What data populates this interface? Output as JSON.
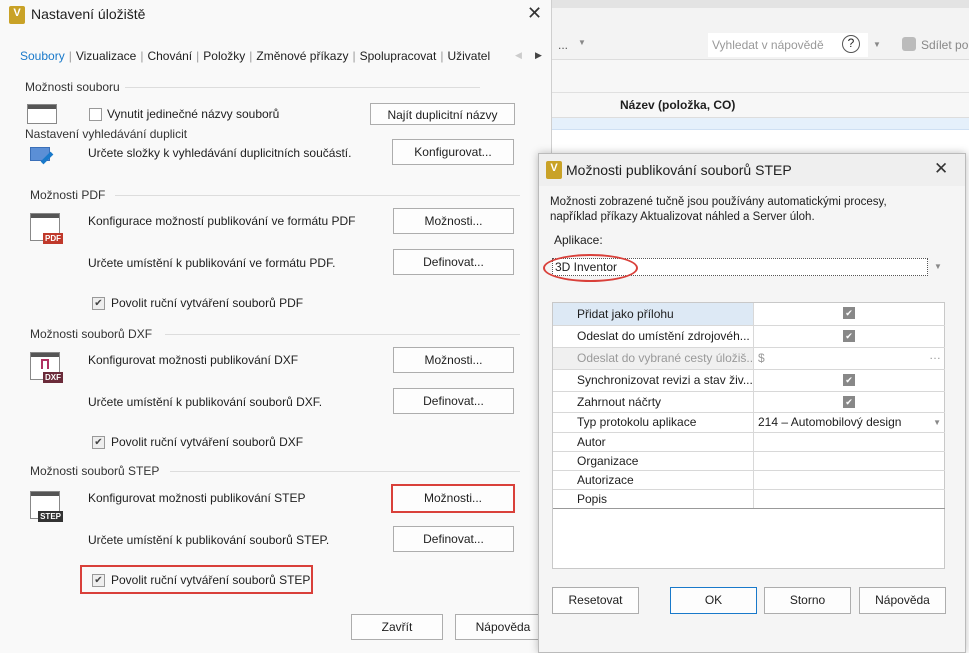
{
  "background": {
    "toolbar_overflow": "...",
    "help_search_placeholder": "Vyhledat v nápovědě",
    "share_label": "Sdílet pol",
    "column_header": "Název (položka, CO)"
  },
  "main_dialog": {
    "title": "Nastavení úložiště",
    "tabs": [
      "Soubory",
      "Vizualizace",
      "Chování",
      "Položky",
      "Změnové příkazy",
      "Spolupracovat",
      "Uživatel"
    ],
    "active_tab": "Soubory",
    "file_options": {
      "header": "Možnosti souboru",
      "enforce_unique_label": "Vynutit jedinečné názvy souborů",
      "enforce_unique_checked": false,
      "find_duplicates_button": "Najít duplicitní názvy"
    },
    "duplicate_search": {
      "header": "Nastavení vyhledávání duplicit",
      "description": "Určete složky k vyhledávání duplicitních součástí.",
      "configure_button": "Konfigurovat..."
    },
    "pdf": {
      "header": "Možnosti PDF",
      "icon_badge": "PDF",
      "configure_label": "Konfigurace možností publikování ve formátu PDF",
      "options_button": "Možnosti...",
      "location_label": "Určete umístění k publikování ve formátu PDF.",
      "define_button": "Definovat...",
      "manual_label": "Povolit ruční vytváření souborů PDF",
      "manual_checked": true
    },
    "dxf": {
      "header": "Možnosti souborů DXF",
      "icon_badge": "DXF",
      "configure_label": "Konfigurovat možnosti publikování DXF",
      "options_button": "Možnosti...",
      "location_label": "Určete umístění k publikování souborů DXF.",
      "define_button": "Definovat...",
      "manual_label": "Povolit ruční vytváření souborů DXF",
      "manual_checked": true
    },
    "step": {
      "header": "Možnosti souborů STEP",
      "icon_badge": "STEP",
      "configure_label": "Konfigurovat možnosti publikování STEP",
      "options_button": "Možnosti...",
      "location_label": "Určete umístění k publikování souborů STEP.",
      "define_button": "Definovat...",
      "manual_label": "Povolit ruční vytváření souborů STEP",
      "manual_checked": true
    },
    "close_button": "Zavřít",
    "help_button": "Nápověda"
  },
  "step_dialog": {
    "title": "Možnosti publikování souborů STEP",
    "description_line1": "Možnosti zobrazené tučně jsou používány automatickými procesy,",
    "description_line2": "například příkazy Aktualizovat náhled a Server úloh.",
    "application_label": "Aplikace:",
    "application_value": "3D Inventor",
    "properties": [
      {
        "name": "Přidat jako přílohu",
        "type": "checkbox",
        "checked": true
      },
      {
        "name": "Odeslat do umístění zdrojovéh...",
        "type": "checkbox",
        "checked": true
      },
      {
        "name": "Odeslat do vybrané cesty úložiš...",
        "type": "path",
        "value": "$",
        "disabled": true
      },
      {
        "name": "Synchronizovat revizi a stav živ...",
        "type": "checkbox",
        "checked": true
      },
      {
        "name": "Zahrnout náčrty",
        "type": "checkbox",
        "checked": true
      },
      {
        "name": "Typ protokolu aplikace",
        "type": "dropdown",
        "value": "214 – Automobilový design"
      },
      {
        "name": "Autor",
        "type": "text",
        "value": ""
      },
      {
        "name": "Organizace",
        "type": "text",
        "value": ""
      },
      {
        "name": "Autorizace",
        "type": "text",
        "value": ""
      },
      {
        "name": "Popis",
        "type": "text",
        "value": ""
      }
    ],
    "reset_button": "Resetovat",
    "ok_button": "OK",
    "cancel_button": "Storno",
    "help_button": "Nápověda"
  },
  "colors": {
    "accent": "#1979ca",
    "highlight": "#d9403a",
    "app_icon": "#c9a227"
  }
}
